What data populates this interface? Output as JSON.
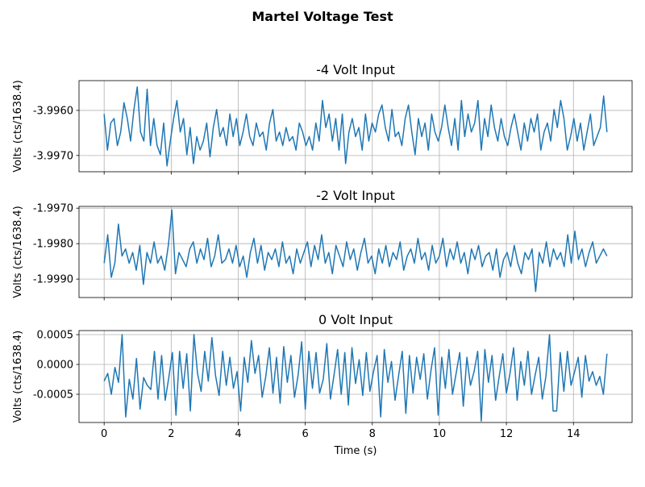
{
  "figure_title": "Martel Voltage Test",
  "chart_data": [
    {
      "type": "line",
      "title": "-4 Volt Input",
      "xlabel": "",
      "ylabel": "Volts (cts/1638.4)",
      "x_range_of_data": [
        0,
        15
      ],
      "xlim": [
        -0.75,
        15.75
      ],
      "ylim": [
        -3.99736,
        -3.99534
      ],
      "xticks": [
        0,
        2,
        4,
        6,
        8,
        10,
        12,
        14
      ],
      "xtick_labels_shown": false,
      "yticks": [
        -3.996,
        -3.997
      ],
      "ytick_labels": [
        "-3.9960",
        "-3.9970"
      ],
      "grid": true,
      "color": "#1f77b4",
      "values": [
        -3.99608,
        -3.99688,
        -3.99628,
        -3.99618,
        -3.99678,
        -3.99648,
        -3.99583,
        -3.99618,
        -3.99668,
        -3.99598,
        -3.99548,
        -3.99648,
        -3.99668,
        -3.99553,
        -3.99678,
        -3.99618,
        -3.99678,
        -3.99698,
        -3.99628,
        -3.99723,
        -3.99668,
        -3.99618,
        -3.99578,
        -3.99648,
        -3.99618,
        -3.99698,
        -3.99638,
        -3.99718,
        -3.99658,
        -3.99688,
        -3.99668,
        -3.99628,
        -3.99703,
        -3.99638,
        -3.99598,
        -3.99658,
        -3.99638,
        -3.99678,
        -3.99608,
        -3.99658,
        -3.99618,
        -3.99678,
        -3.99648,
        -3.99608,
        -3.99658,
        -3.99678,
        -3.99628,
        -3.99658,
        -3.99648,
        -3.99688,
        -3.99628,
        -3.99598,
        -3.99668,
        -3.99648,
        -3.99678,
        -3.99638,
        -3.99668,
        -3.99658,
        -3.99688,
        -3.99628,
        -3.99648,
        -3.99678,
        -3.99658,
        -3.99688,
        -3.99628,
        -3.99668,
        -3.99578,
        -3.99638,
        -3.99608,
        -3.99668,
        -3.99618,
        -3.99688,
        -3.99608,
        -3.99718,
        -3.99648,
        -3.99618,
        -3.99658,
        -3.99638,
        -3.99688,
        -3.99608,
        -3.99668,
        -3.99628,
        -3.99648,
        -3.99608,
        -3.99588,
        -3.99638,
        -3.99668,
        -3.99598,
        -3.99658,
        -3.99648,
        -3.99678,
        -3.99618,
        -3.99588,
        -3.99648,
        -3.99698,
        -3.99618,
        -3.99658,
        -3.99628,
        -3.99688,
        -3.99608,
        -3.99648,
        -3.99668,
        -3.99638,
        -3.99588,
        -3.99638,
        -3.99678,
        -3.99618,
        -3.99688,
        -3.99578,
        -3.99658,
        -3.99608,
        -3.99648,
        -3.99628,
        -3.99578,
        -3.99688,
        -3.99618,
        -3.99658,
        -3.99588,
        -3.99638,
        -3.99668,
        -3.99618,
        -3.99658,
        -3.99678,
        -3.99638,
        -3.99608,
        -3.99648,
        -3.99688,
        -3.99628,
        -3.99668,
        -3.99618,
        -3.99648,
        -3.99608,
        -3.99688,
        -3.99648,
        -3.99628,
        -3.99668,
        -3.99598,
        -3.99638,
        -3.99578,
        -3.99618,
        -3.99688,
        -3.99658,
        -3.99618,
        -3.99668,
        -3.99628,
        -3.99688,
        -3.99648,
        -3.99608,
        -3.99678,
        -3.99658,
        -3.99638,
        -3.99568,
        -3.99648
      ]
    },
    {
      "type": "line",
      "title": "-2 Volt Input",
      "xlabel": "",
      "ylabel": "Volts (cts/1638.4)",
      "x_range_of_data": [
        0,
        15
      ],
      "xlim": [
        -0.75,
        15.75
      ],
      "ylim": [
        -1.99952,
        -1.99695
      ],
      "xticks": [
        0,
        2,
        4,
        6,
        8,
        10,
        12,
        14
      ],
      "xtick_labels_shown": false,
      "yticks": [
        -1.997,
        -1.998,
        -1.999
      ],
      "ytick_labels": [
        "-1.9970",
        "-1.9980",
        "-1.9990"
      ],
      "grid": true,
      "color": "#1f77b4",
      "values": [
        -1.99855,
        -1.99775,
        -1.99895,
        -1.99855,
        -1.99745,
        -1.99835,
        -1.99815,
        -1.99855,
        -1.99825,
        -1.99875,
        -1.99805,
        -1.99915,
        -1.99825,
        -1.99855,
        -1.99795,
        -1.99855,
        -1.99835,
        -1.99875,
        -1.99805,
        -1.99705,
        -1.99885,
        -1.99825,
        -1.99845,
        -1.99865,
        -1.99815,
        -1.99795,
        -1.99855,
        -1.99815,
        -1.99845,
        -1.99785,
        -1.99865,
        -1.99835,
        -1.99775,
        -1.99855,
        -1.99845,
        -1.99815,
        -1.99855,
        -1.99805,
        -1.99865,
        -1.99835,
        -1.99895,
        -1.99825,
        -1.99785,
        -1.99855,
        -1.99805,
        -1.99875,
        -1.99825,
        -1.99845,
        -1.99815,
        -1.99865,
        -1.99795,
        -1.99855,
        -1.99835,
        -1.99885,
        -1.99815,
        -1.99855,
        -1.99825,
        -1.99795,
        -1.99865,
        -1.99805,
        -1.99845,
        -1.99775,
        -1.99855,
        -1.99825,
        -1.99885,
        -1.99805,
        -1.99835,
        -1.99865,
        -1.99795,
        -1.99845,
        -1.99815,
        -1.99875,
        -1.99825,
        -1.99785,
        -1.99855,
        -1.99835,
        -1.99885,
        -1.99815,
        -1.99855,
        -1.99805,
        -1.99865,
        -1.99825,
        -1.99845,
        -1.99795,
        -1.99875,
        -1.99835,
        -1.99815,
        -1.99855,
        -1.99785,
        -1.99845,
        -1.99825,
        -1.99875,
        -1.99805,
        -1.99855,
        -1.99835,
        -1.99785,
        -1.99865,
        -1.99815,
        -1.99845,
        -1.99795,
        -1.99855,
        -1.99825,
        -1.99885,
        -1.99815,
        -1.99845,
        -1.99805,
        -1.99865,
        -1.99835,
        -1.99825,
        -1.99875,
        -1.99815,
        -1.99895,
        -1.99845,
        -1.99825,
        -1.99865,
        -1.99805,
        -1.99855,
        -1.99885,
        -1.99825,
        -1.99845,
        -1.99815,
        -1.99935,
        -1.99825,
        -1.99855,
        -1.99795,
        -1.99865,
        -1.99815,
        -1.99845,
        -1.99825,
        -1.99865,
        -1.99775,
        -1.99855,
        -1.99765,
        -1.99845,
        -1.99815,
        -1.99865,
        -1.99825,
        -1.99795,
        -1.99855,
        -1.99835,
        -1.99815,
        -1.99835
      ]
    },
    {
      "type": "line",
      "title": "0 Volt Input",
      "xlabel": "Time (s)",
      "ylabel": "Volts (cts/1638.4)",
      "x_range_of_data": [
        0,
        15
      ],
      "xlim": [
        -0.75,
        15.75
      ],
      "ylim": [
        -0.000973,
        0.000568
      ],
      "xticks": [
        0,
        2,
        4,
        6,
        8,
        10,
        12,
        14
      ],
      "xtick_labels": [
        "0",
        "2",
        "4",
        "6",
        "8",
        "10",
        "12",
        "14"
      ],
      "xtick_labels_shown": true,
      "yticks": [
        0.0005,
        0,
        -0.0005
      ],
      "ytick_labels": [
        "0.0005",
        "0.0000",
        "-0.0005"
      ],
      "grid": true,
      "color": "#1f77b4",
      "values": [
        -0.00028,
        -0.00015,
        -0.0005,
        -5e-05,
        -0.0003,
        0.0005,
        -0.00088,
        -0.00025,
        -0.00058,
        0.0001,
        -0.00075,
        -0.00022,
        -0.00035,
        -0.00042,
        0.00022,
        -0.00058,
        0.00015,
        -0.0006,
        -0.00022,
        0.0002,
        -0.00085,
        0.00022,
        -0.0004,
        0.00018,
        -0.00078,
        0.0005,
        -0.00015,
        -0.00045,
        0.00022,
        -0.00028,
        0.00045,
        -0.00018,
        -0.00052,
        0.00022,
        -0.00035,
        0.00012,
        -0.0004,
        -0.00012,
        -0.00078,
        0.00012,
        -0.0003,
        0.0004,
        -0.00015,
        0.00015,
        -0.00055,
        -0.0002,
        0.00028,
        -0.00048,
        0.00012,
        -0.00065,
        0.0003,
        -0.0003,
        0.00015,
        -0.00055,
        -0.00018,
        0.00038,
        -0.00075,
        0.00022,
        -0.0004,
        0.0002,
        -0.00048,
        -0.00025,
        0.00035,
        -0.00058,
        -0.00018,
        0.00025,
        -0.0005,
        0.0002,
        -0.00068,
        0.00028,
        -0.00032,
        8e-05,
        -0.00052,
        0.0002,
        -0.00045,
        -0.00012,
        0.00015,
        -0.00088,
        0.00025,
        -0.0003,
        5e-05,
        -0.0006,
        -0.00018,
        0.00022,
        -0.00082,
        0.00015,
        -0.00048,
        0.00012,
        -0.00025,
        0.00018,
        -0.00058,
        -0.0001,
        0.00028,
        -0.00085,
        0.00012,
        -0.0004,
        0.00025,
        -0.0005,
        -0.00015,
        0.0002,
        -0.0007,
        0.00012,
        -0.00035,
        -0.00012,
        0.00022,
        -0.00095,
        0.00025,
        -0.0003,
        0.00015,
        -0.0006,
        -0.0002,
        0.00018,
        -0.00048,
        -0.00015,
        0.00028,
        -0.0006,
        5e-05,
        -0.00035,
        0.00022,
        -0.0005,
        -0.00018,
        0.00012,
        -0.00058,
        -0.0002,
        0.0005,
        -0.00078,
        -0.00078,
        0.0002,
        -0.00045,
        0.00022,
        -0.00035,
        -0.00012,
        0.00012,
        -0.00055,
        0.00015,
        -0.00028,
        -0.00012,
        -0.00035,
        -0.0002,
        -0.0005,
        0.00018
      ]
    }
  ]
}
